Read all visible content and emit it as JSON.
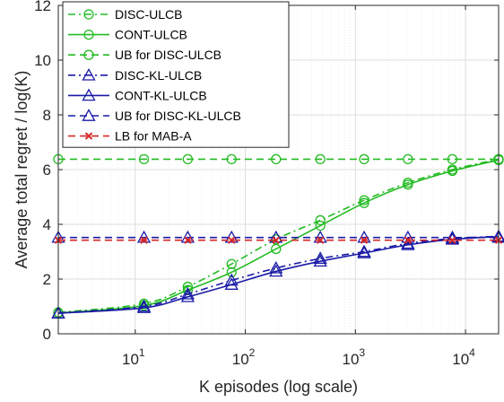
{
  "chart_data": {
    "type": "line",
    "title": "",
    "xlabel": "K episodes (log scale)",
    "ylabel": "Average total regret / log(K)",
    "x_scale": "log",
    "xlim": [
      2,
      20000
    ],
    "ylim": [
      0,
      12
    ],
    "xticks": [
      10,
      100,
      1000,
      10000
    ],
    "xtick_labels": [
      {
        "base": "10",
        "exp": "1"
      },
      {
        "base": "10",
        "exp": "2"
      },
      {
        "base": "10",
        "exp": "3"
      },
      {
        "base": "10",
        "exp": "4"
      }
    ],
    "yticks": [
      0,
      2,
      4,
      6,
      8,
      10,
      12
    ],
    "ytick_labels": [
      "0",
      "2",
      "4",
      "6",
      "8",
      "10",
      "12"
    ],
    "grid": true,
    "legend_position": "top-left",
    "x": [
      2,
      12,
      30,
      75,
      190,
      480,
      1200,
      3000,
      7600,
      20000
    ],
    "series": [
      {
        "name": "DISC-ULCB",
        "color": "#22bb22",
        "dash": "dashdot",
        "marker": "circle",
        "values": [
          0.78,
          1.1,
          1.72,
          2.55,
          3.45,
          4.15,
          4.88,
          5.52,
          6.0,
          6.38
        ]
      },
      {
        "name": "CONT-ULCB",
        "color": "#22bb22",
        "dash": "solid",
        "marker": "circle",
        "values": [
          0.76,
          1.03,
          1.6,
          2.25,
          3.1,
          3.95,
          4.78,
          5.45,
          5.95,
          6.35
        ]
      },
      {
        "name": "UB for DISC-ULCB",
        "color": "#22bb22",
        "dash": "dashed",
        "marker": "circle",
        "values": [
          6.38,
          6.38,
          6.38,
          6.38,
          6.38,
          6.38,
          6.38,
          6.38,
          6.38,
          6.38
        ]
      },
      {
        "name": "DISC-KL-ULCB",
        "color": "#1a1aa6",
        "dash": "dashdot",
        "marker": "triangle",
        "values": [
          0.76,
          1.0,
          1.45,
          1.95,
          2.4,
          2.75,
          3.0,
          3.3,
          3.48,
          3.56
        ]
      },
      {
        "name": "CONT-KL-ULCB",
        "color": "#1a1aa6",
        "dash": "solid",
        "marker": "triangle",
        "values": [
          0.75,
          0.95,
          1.35,
          1.8,
          2.28,
          2.65,
          2.95,
          3.25,
          3.45,
          3.55
        ]
      },
      {
        "name": "UB for DISC-KL-ULCB",
        "color": "#1a1aa6",
        "dash": "dashed",
        "marker": "triangle",
        "values": [
          3.52,
          3.52,
          3.52,
          3.52,
          3.52,
          3.52,
          3.52,
          3.52,
          3.52,
          3.52
        ]
      },
      {
        "name": "LB for MAB-A",
        "color": "#d62728",
        "dash": "dashed",
        "marker": "x",
        "values": [
          3.42,
          3.42,
          3.42,
          3.42,
          3.42,
          3.42,
          3.42,
          3.42,
          3.42,
          3.42
        ]
      }
    ]
  }
}
